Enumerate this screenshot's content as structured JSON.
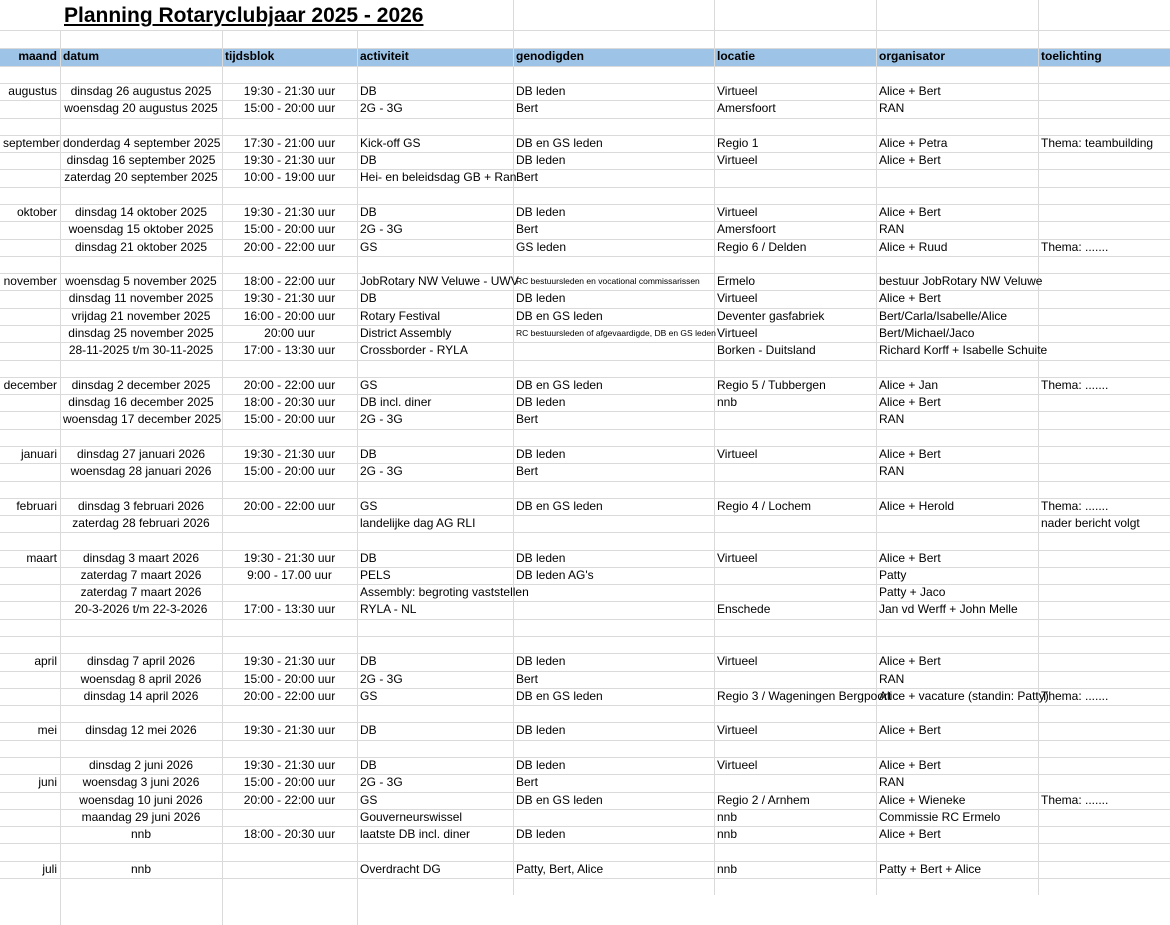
{
  "title": "Planning Rotaryclubjaar 2025 - 2026",
  "header": [
    "maand",
    "datum",
    "tijdsblok",
    "activiteit",
    "genodigden",
    "locatie",
    "organisator",
    "toelichting"
  ],
  "rows": [
    null,
    [
      "augustus",
      "dinsdag 26 augustus 2025",
      "19:30 - 21:30 uur",
      "DB",
      "DB leden",
      "Virtueel",
      "Alice + Bert",
      null
    ],
    [
      null,
      "woensdag 20 augustus 2025",
      "15:00 - 20:00 uur",
      "2G - 3G",
      "Bert",
      "Amersfoort",
      "RAN",
      null
    ],
    null,
    [
      "september",
      "donderdag 4 september 2025",
      "17:30 - 21:00 uur",
      "Kick-off GS",
      "DB en GS leden",
      "Regio 1",
      "Alice + Petra",
      "Thema: teambuilding"
    ],
    [
      null,
      "dinsdag 16 september 2025",
      "19:30 - 21:30 uur",
      "DB",
      "DB leden",
      "Virtueel",
      "Alice + Bert",
      null
    ],
    [
      null,
      "zaterdag 20 september 2025",
      "10:00 - 19:00 uur",
      "Hei- en beleidsdag GB + Ran",
      "Bert",
      null,
      null,
      null
    ],
    null,
    [
      "oktober",
      "dinsdag 14 oktober 2025",
      "19:30 - 21:30 uur",
      "DB",
      "DB leden",
      "Virtueel",
      "Alice + Bert",
      null
    ],
    [
      null,
      "woensdag 15 oktober 2025",
      "15:00 - 20:00 uur",
      "2G - 3G",
      "Bert",
      "Amersfoort",
      "RAN",
      null
    ],
    [
      null,
      "dinsdag 21 oktober 2025",
      "20:00 - 22:00 uur",
      "GS",
      "GS leden",
      "Regio 6  /  Delden",
      "Alice + Ruud",
      "Thema: ......."
    ],
    null,
    [
      "november",
      "woensdag 5 november 2025",
      "18:00 - 22:00 uur",
      "JobRotary NW Veluwe - UWV",
      "RC bestuursleden en vocational commissarissen",
      "Ermelo",
      "bestuur JobRotary NW Veluwe",
      null
    ],
    [
      null,
      "dinsdag 11 november 2025",
      "19:30 - 21:30 uur",
      "DB",
      "DB leden",
      "Virtueel",
      "Alice + Bert",
      null
    ],
    [
      null,
      "vrijdag 21 november 2025",
      "16:00 - 20:00 uur",
      "Rotary Festival",
      "DB en GS leden",
      "Deventer gasfabriek",
      "Bert/Carla/Isabelle/Alice",
      null
    ],
    [
      null,
      "dinsdag 25 november 2025",
      "20:00 uur",
      "District Assembly",
      "RC bestuursleden of afgevaardigde, DB en GS leden",
      "Virtueel",
      "Bert/Michael/Jaco",
      null
    ],
    [
      null,
      "28-11-2025 t/m 30-11-2025",
      "17:00 - 13:30 uur",
      "Crossborder - RYLA",
      null,
      "Borken - Duitsland",
      "Richard Korff + Isabelle Schuite",
      null
    ],
    null,
    [
      "december",
      "dinsdag 2 december 2025",
      "20:00 - 22:00 uur",
      "GS",
      "DB en GS leden",
      "Regio 5   / Tubbergen",
      "Alice + Jan",
      "Thema: ......."
    ],
    [
      null,
      "dinsdag 16 december 2025",
      "18:00 - 20:30 uur",
      "DB incl. diner",
      "DB leden",
      "nnb",
      "Alice + Bert",
      null
    ],
    [
      null,
      "woensdag 17 december 2025",
      "15:00 - 20:00 uur",
      "2G - 3G",
      "Bert",
      null,
      "RAN",
      null
    ],
    null,
    [
      "januari",
      "dinsdag 27 januari 2026",
      "19:30 - 21:30 uur",
      "DB",
      "DB leden",
      "Virtueel",
      "Alice + Bert",
      null
    ],
    [
      null,
      "woensdag 28 januari 2026",
      "15:00 - 20:00 uur",
      "2G - 3G",
      "Bert",
      null,
      "RAN",
      null
    ],
    null,
    [
      "februari",
      "dinsdag 3 februari 2026",
      "20:00 - 22:00 uur",
      "GS",
      "DB en GS leden",
      "Regio 4  / Lochem",
      "Alice + Herold",
      "Thema: ......."
    ],
    [
      null,
      "zaterdag 28 februari 2026",
      null,
      "landelijke dag AG RLI",
      null,
      null,
      null,
      "nader bericht volgt"
    ],
    null,
    [
      "maart",
      "dinsdag 3 maart 2026",
      "19:30 - 21:30 uur",
      "DB",
      "DB leden",
      "Virtueel",
      "Alice + Bert",
      null
    ],
    [
      null,
      "zaterdag 7 maart 2026",
      "9:00 - 17.00 uur",
      "PELS",
      "DB leden AG's",
      null,
      "Patty",
      null
    ],
    [
      null,
      "zaterdag 7 maart 2026",
      null,
      "Assembly: begroting vaststellen",
      null,
      null,
      "Patty + Jaco",
      null
    ],
    [
      null,
      "20-3-2026 t/m 22-3-2026",
      "17:00 - 13:30 uur",
      "RYLA - NL",
      null,
      "Enschede",
      "Jan vd Werff + John Melle",
      null
    ],
    null,
    null,
    [
      "april",
      "dinsdag 7 april 2026",
      "19:30 - 21:30 uur",
      "DB",
      "DB leden",
      "Virtueel",
      "Alice + Bert",
      null
    ],
    [
      null,
      "woensdag 8 april 2026",
      "15:00 - 20:00 uur",
      "2G - 3G",
      "Bert",
      null,
      "RAN",
      null
    ],
    [
      null,
      "dinsdag 14 april 2026",
      "20:00 - 22:00 uur",
      "GS",
      "DB en GS leden",
      "Regio 3  / Wageningen Bergpoort",
      "Alice + vacature (standin: Patty)",
      "Thema: ......."
    ],
    null,
    [
      "mei",
      "dinsdag 12 mei 2026",
      "19:30 - 21:30 uur",
      "DB",
      "DB leden",
      "Virtueel",
      "Alice + Bert",
      null
    ],
    null,
    [
      null,
      "dinsdag 2 juni 2026",
      "19:30 - 21:30 uur",
      "DB",
      "DB leden",
      "Virtueel",
      "Alice + Bert",
      null
    ],
    [
      "juni",
      "woensdag 3 juni 2026",
      "15:00 - 20:00 uur",
      "2G - 3G",
      "Bert",
      null,
      "RAN",
      null
    ],
    [
      null,
      "woensdag 10 juni 2026",
      "20:00 - 22:00 uur",
      "GS",
      "DB en GS leden",
      "Regio 2  / Arnhem",
      "Alice + Wieneke",
      "Thema: ......."
    ],
    [
      null,
      "maandag 29 juni 2026",
      null,
      "Gouverneurswissel",
      null,
      "nnb",
      "Commissie RC Ermelo",
      null
    ],
    [
      null,
      "nnb",
      "18:00 - 20:30 uur",
      "laatste DB incl. diner",
      "DB leden",
      "nnb",
      "Alice + Bert",
      null
    ],
    null,
    [
      "juli",
      "nnb",
      null,
      "Overdracht DG",
      "Patty, Bert, Alice",
      "nnb",
      "Patty + Bert + Alice",
      null
    ]
  ]
}
